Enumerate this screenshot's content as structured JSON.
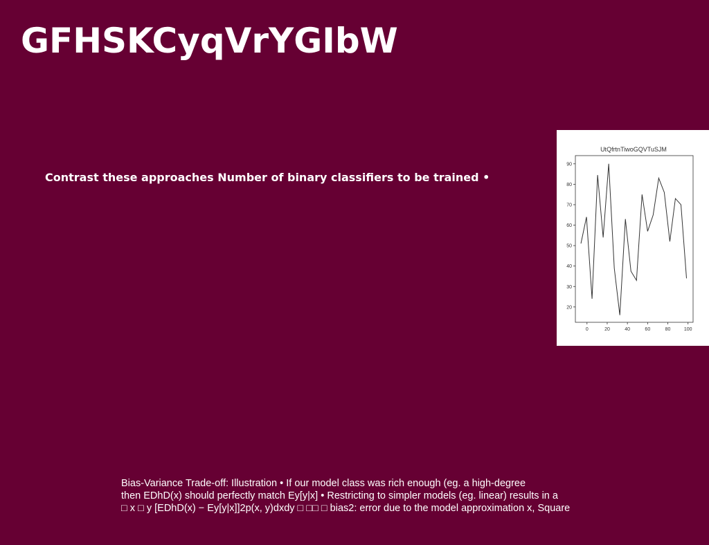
{
  "title": "GFHSKCyqVrYGIbW",
  "bullet": "Contrast these approaches Number of binary classifiers to be trained •",
  "notes": [
    "Bias-Variance Trade-off: Illustration • If our model class was rich enough (eg. a high-degree",
    "then EDhD(x) should perfectly match Ey[y|x] • Restricting to simpler models (eg. linear) results in a",
    "□ x □ y [EDhD(x) − Ey[y|x]]2p(x, y)dxdy □ □□ □ bias2: error due to the model approximation x, Square"
  ],
  "chart_data": {
    "type": "line",
    "title": "UtQfrtnTiwoGQVTuSJM",
    "x": [
      -6,
      -0.5,
      5,
      10.5,
      16,
      21.5,
      27,
      32.5,
      38,
      43.5,
      49,
      54.5,
      60,
      65.5,
      71,
      76.5,
      82,
      87.5,
      93,
      98.5
    ],
    "series": [
      {
        "color": "#333333",
        "values": [
          51,
          64,
          24,
          84.5,
          54,
          90,
          39,
          16,
          63,
          37.5,
          33,
          75,
          57,
          65,
          83,
          76,
          52,
          73,
          70,
          34
        ]
      }
    ],
    "xlim": [
      -11.5,
      105
    ],
    "ylim": [
      12.5,
      94
    ],
    "xticks": [
      0,
      20,
      40,
      60,
      80,
      100
    ],
    "yticks": [
      20,
      30,
      40,
      50,
      60,
      70,
      80,
      90
    ]
  }
}
